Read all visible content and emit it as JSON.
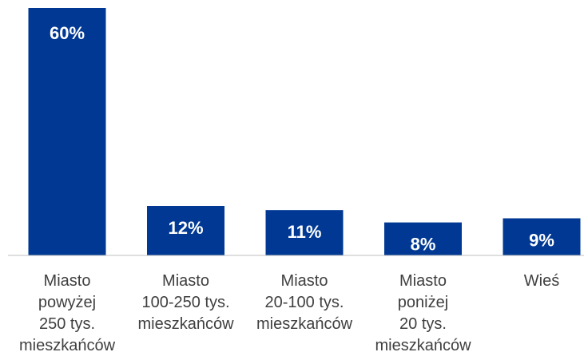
{
  "chart_data": {
    "type": "bar",
    "categories": [
      [
        "Miasto",
        "powyżej",
        "250 tys.",
        "mieszkańców"
      ],
      [
        "Miasto",
        "100-250 tys.",
        "mieszkańców"
      ],
      [
        "Miasto",
        "20-100 tys.",
        "mieszkańców"
      ],
      [
        "Miasto",
        "poniżej",
        "20 tys.",
        "mieszkańców"
      ],
      [
        "Wieś"
      ]
    ],
    "values": [
      60,
      12,
      11,
      8,
      9
    ],
    "value_labels": [
      "60%",
      "12%",
      "11%",
      "8%",
      "9%"
    ],
    "ylim": [
      0,
      60
    ],
    "grid": false,
    "legend": "none",
    "bar_color": "#003893",
    "label_color": "#ffffff",
    "category_color": "#404040",
    "axis_color": "#bfbfbf"
  }
}
